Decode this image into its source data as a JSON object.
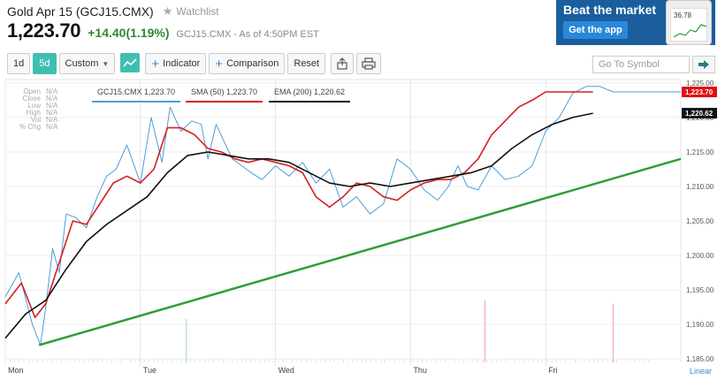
{
  "header": {
    "title": "Gold Apr 15 (GCJ15.CMX)",
    "watchlist_label": "Watchlist",
    "price": "1,223.70",
    "change": "+14.40(1.19%)",
    "asof": "GCJ15.CMX - As of 4:50PM EST"
  },
  "ad": {
    "title": "Beat the market",
    "button": "Get the app",
    "phone_value": "36.78"
  },
  "toolbar": {
    "range_1d": "1d",
    "range_5d": "5d",
    "custom": "Custom",
    "indicator": "Indicator",
    "comparison": "Comparison",
    "reset": "Reset",
    "symbol_placeholder": "Go To Symbol"
  },
  "stats": [
    {
      "k": "Open",
      "v": "N/A"
    },
    {
      "k": "Close",
      "v": "N/A"
    },
    {
      "k": "Low",
      "v": "N/A"
    },
    {
      "k": "High",
      "v": "N/A"
    },
    {
      "k": "Vol",
      "v": "N/A"
    },
    {
      "k": "% Chg",
      "v": "N/A"
    }
  ],
  "legend": {
    "price": "GCJ15.CMX 1,223.70",
    "sma": "SMA (50) 1,223.70",
    "ema": "EMA (200) 1,220.62"
  },
  "colors": {
    "price": "#4a9fd8",
    "sma": "#d42020",
    "ema": "#111111",
    "trend": "#2f9e3a",
    "active": "#3fbfb0"
  },
  "chart_data": {
    "type": "line",
    "x_labels": [
      "Mon",
      "Tue",
      "Wed",
      "Thu",
      "Fri"
    ],
    "y_ticks": [
      "1,225.00",
      "1,220.00",
      "1,215.00",
      "1,210.00",
      "1,205.00",
      "1,200.00",
      "1,195.00",
      "1,190.00",
      "1,185.00"
    ],
    "ylim": [
      1184.5,
      1225.5
    ],
    "scale_label": "Linear",
    "price_tag": "1,223.70",
    "ema_tag": "1,220.62",
    "xlim": [
      0,
      5
    ],
    "series": [
      {
        "key": "price",
        "x": [
          0.0,
          0.1,
          0.2,
          0.26,
          0.3,
          0.35,
          0.4,
          0.45,
          0.52,
          0.6,
          0.68,
          0.75,
          0.82,
          0.9,
          1.0,
          1.08,
          1.16,
          1.22,
          1.3,
          1.38,
          1.45,
          1.5,
          1.56,
          1.62,
          1.68,
          1.75,
          1.82,
          1.9,
          2.0,
          2.1,
          2.2,
          2.3,
          2.4,
          2.5,
          2.6,
          2.7,
          2.8,
          2.9,
          3.0,
          3.1,
          3.2,
          3.28,
          3.35,
          3.42,
          3.5,
          3.6,
          3.7,
          3.8,
          3.9,
          4.0,
          4.1,
          4.2,
          4.3,
          4.4,
          4.5,
          4.58,
          4.66,
          4.75,
          4.8,
          4.9,
          5.0
        ],
        "y": [
          1194.0,
          1197.5,
          1190.0,
          1187.0,
          1192.5,
          1201.0,
          1197.5,
          1206.0,
          1205.5,
          1204.0,
          1208.5,
          1211.5,
          1212.5,
          1216.0,
          1210.5,
          1220.0,
          1213.5,
          1221.5,
          1218.0,
          1219.5,
          1219.0,
          1214.0,
          1219.0,
          1216.5,
          1214.0,
          1213.0,
          1212.0,
          1211.0,
          1213.0,
          1211.5,
          1213.5,
          1210.5,
          1212.5,
          1207.0,
          1208.5,
          1206.0,
          1207.5,
          1214.0,
          1212.5,
          1209.5,
          1208.0,
          1210.0,
          1213.0,
          1210.0,
          1209.5,
          1213.0,
          1211.0,
          1211.5,
          1213.0,
          1218.0,
          1220.0,
          1223.5,
          1224.5,
          1224.5,
          1223.7,
          1223.7,
          1223.7,
          1223.7,
          1223.7,
          1223.7,
          1223.7
        ]
      },
      {
        "key": "sma",
        "x": [
          0.0,
          0.12,
          0.22,
          0.3,
          0.4,
          0.5,
          0.6,
          0.7,
          0.8,
          0.9,
          1.0,
          1.1,
          1.2,
          1.3,
          1.4,
          1.5,
          1.6,
          1.7,
          1.8,
          1.9,
          2.0,
          2.1,
          2.2,
          2.3,
          2.4,
          2.5,
          2.6,
          2.7,
          2.8,
          2.9,
          3.0,
          3.1,
          3.2,
          3.3,
          3.4,
          3.5,
          3.6,
          3.7,
          3.8,
          3.9,
          4.0,
          4.1,
          4.2,
          4.3,
          4.35
        ],
        "y": [
          1193.0,
          1196.0,
          1191.0,
          1193.0,
          1199.0,
          1205.0,
          1204.5,
          1207.5,
          1210.5,
          1211.5,
          1210.5,
          1212.5,
          1218.5,
          1218.5,
          1217.5,
          1215.5,
          1215.0,
          1214.0,
          1213.5,
          1214.0,
          1213.5,
          1213.0,
          1212.0,
          1208.5,
          1207.0,
          1208.5,
          1210.5,
          1210.0,
          1208.5,
          1208.0,
          1209.5,
          1210.5,
          1211.0,
          1211.0,
          1212.0,
          1214.0,
          1217.5,
          1219.5,
          1221.5,
          1222.5,
          1223.7,
          1223.7,
          1223.7,
          1223.7,
          1223.7
        ]
      },
      {
        "key": "ema",
        "x": [
          0.0,
          0.15,
          0.3,
          0.45,
          0.6,
          0.75,
          0.9,
          1.05,
          1.2,
          1.35,
          1.5,
          1.65,
          1.8,
          1.95,
          2.1,
          2.25,
          2.4,
          2.55,
          2.7,
          2.85,
          3.0,
          3.15,
          3.3,
          3.45,
          3.6,
          3.75,
          3.9,
          4.05,
          4.2,
          4.35
        ],
        "y": [
          1188.0,
          1191.5,
          1193.5,
          1198.0,
          1202.0,
          1204.5,
          1206.5,
          1208.5,
          1212.0,
          1214.5,
          1215.0,
          1214.5,
          1214.0,
          1214.0,
          1213.5,
          1212.0,
          1210.5,
          1210.0,
          1210.5,
          1210.0,
          1210.5,
          1211.0,
          1211.5,
          1212.0,
          1213.0,
          1215.5,
          1217.5,
          1219.0,
          1220.0,
          1220.62
        ]
      },
      {
        "key": "trend",
        "x": [
          0.25,
          5.0
        ],
        "y": [
          1187.0,
          1214.0
        ]
      }
    ],
    "volume_spikes": [
      {
        "x": 1.34,
        "v": 0.7,
        "color": "green"
      },
      {
        "x": 3.55,
        "v": 1.0,
        "color": "red"
      },
      {
        "x": 4.5,
        "v": 0.95,
        "color": "red"
      }
    ]
  }
}
